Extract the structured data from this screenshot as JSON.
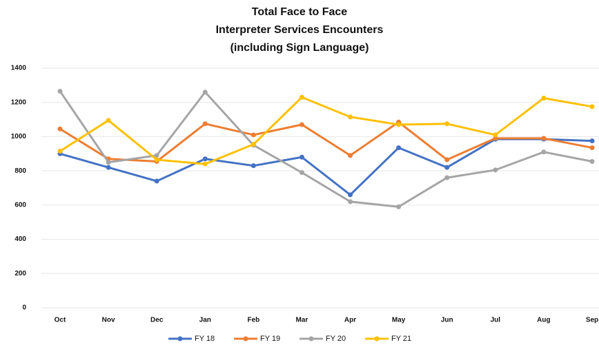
{
  "chart_data": {
    "type": "line",
    "title": [
      "Total Face to Face",
      "Interpreter Services Encounters",
      "(including Sign Language)"
    ],
    "categories": [
      "Oct",
      "Nov",
      "Dec",
      "Jan",
      "Feb",
      "Mar",
      "Apr",
      "May",
      "Jun",
      "Jul",
      "Aug",
      "Sep"
    ],
    "series": [
      {
        "name": "FY 18",
        "color": "#4472c4",
        "values": [
          900,
          820,
          740,
          870,
          830,
          880,
          660,
          935,
          820,
          985,
          985,
          975
        ]
      },
      {
        "name": "FY 19",
        "color": "#ed7d31",
        "values": [
          1045,
          870,
          855,
          1075,
          1010,
          1070,
          890,
          1085,
          865,
          990,
          990,
          935
        ]
      },
      {
        "name": "FY 20",
        "color": "#a5a5a5",
        "values": [
          1265,
          850,
          890,
          1260,
          950,
          790,
          620,
          590,
          760,
          805,
          910,
          855
        ]
      },
      {
        "name": "FY 21",
        "color": "#ffc000",
        "values": [
          915,
          1095,
          865,
          840,
          955,
          1230,
          1115,
          1070,
          1075,
          1010,
          1225,
          1175
        ]
      }
    ],
    "ylim": [
      0,
      1400
    ],
    "yticks": [
      0,
      200,
      400,
      600,
      800,
      1000,
      1200,
      1400
    ],
    "grid": true,
    "legend": "bottom"
  }
}
